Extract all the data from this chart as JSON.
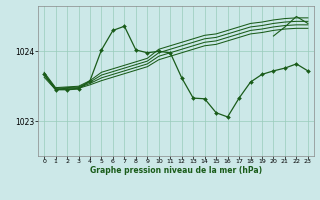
{
  "bg_color": "#cce8e8",
  "grid_color": "#99ccbb",
  "line_color": "#1a5c1a",
  "xlabel": "Graphe pression niveau de la mer (hPa)",
  "ylim": [
    1022.5,
    1024.65
  ],
  "xlim": [
    -0.5,
    23.5
  ],
  "yticks": [
    1023,
    1024
  ],
  "xticks": [
    0,
    1,
    2,
    3,
    4,
    5,
    6,
    7,
    8,
    9,
    10,
    11,
    12,
    13,
    14,
    15,
    16,
    17,
    18,
    19,
    20,
    21,
    22,
    23
  ],
  "s_flat1": [
    1023.63,
    1023.45,
    1023.46,
    1023.47,
    1023.52,
    1023.58,
    1023.63,
    1023.68,
    1023.73,
    1023.78,
    1023.88,
    1023.93,
    1023.98,
    1024.03,
    1024.08,
    1024.1,
    1024.15,
    1024.2,
    1024.25,
    1024.27,
    1024.3,
    1024.32,
    1024.33,
    1024.33
  ],
  "s_flat2": [
    1023.66,
    1023.46,
    1023.47,
    1023.48,
    1023.54,
    1023.62,
    1023.67,
    1023.72,
    1023.77,
    1023.82,
    1023.93,
    1023.98,
    1024.03,
    1024.08,
    1024.13,
    1024.15,
    1024.2,
    1024.25,
    1024.3,
    1024.32,
    1024.35,
    1024.37,
    1024.38,
    1024.38
  ],
  "s_flat3": [
    1023.68,
    1023.47,
    1023.48,
    1023.49,
    1023.56,
    1023.66,
    1023.71,
    1023.76,
    1023.81,
    1023.86,
    1023.98,
    1024.03,
    1024.08,
    1024.13,
    1024.18,
    1024.2,
    1024.25,
    1024.3,
    1024.35,
    1024.37,
    1024.4,
    1024.42,
    1024.43,
    1024.43
  ],
  "s_flat4": [
    1023.7,
    1023.48,
    1023.49,
    1023.5,
    1023.58,
    1023.7,
    1023.75,
    1023.8,
    1023.85,
    1023.9,
    1024.03,
    1024.08,
    1024.13,
    1024.18,
    1024.23,
    1024.25,
    1024.3,
    1024.35,
    1024.4,
    1024.42,
    1024.45,
    1024.47,
    1024.48,
    1024.48
  ],
  "s_main": [
    1023.67,
    1023.45,
    1023.45,
    1023.46,
    1023.58,
    1024.02,
    1024.3,
    1024.36,
    1024.02,
    1023.98,
    1024.0,
    1023.98,
    1023.62,
    1023.33,
    1023.32,
    1023.12,
    1023.06,
    1023.33,
    1023.56,
    1023.67,
    1023.72,
    1023.76,
    1023.82,
    1023.72
  ],
  "s_tri_top": [
    null,
    null,
    null,
    null,
    null,
    null,
    null,
    null,
    null,
    null,
    null,
    null,
    null,
    null,
    null,
    null,
    null,
    null,
    null,
    null,
    1024.22,
    1024.33,
    1024.5,
    1024.4
  ],
  "s_tri_bot": [
    null,
    null,
    null,
    null,
    null,
    null,
    null,
    null,
    null,
    null,
    null,
    null,
    null,
    null,
    null,
    null,
    null,
    null,
    null,
    null,
    null,
    null,
    1024.5,
    1024.4
  ]
}
